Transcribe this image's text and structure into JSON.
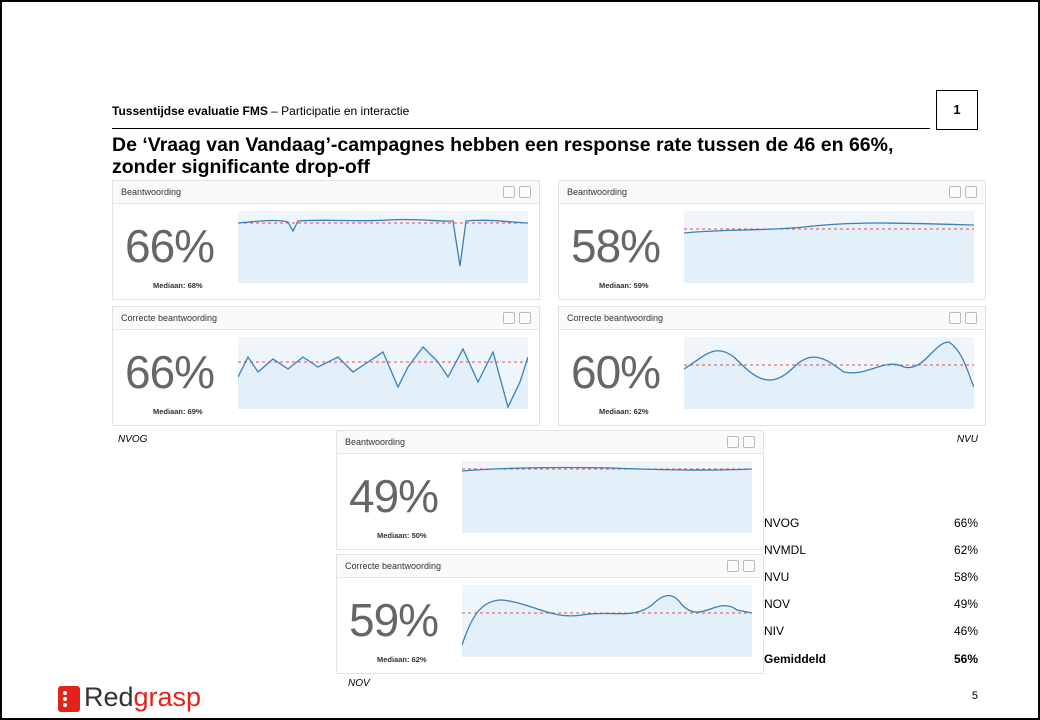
{
  "header": {
    "title_bold": "Tussentijdse evaluatie FMS",
    "title_rest": " – Participatie en interactie",
    "badge": "1"
  },
  "title": "De ‘Vraag van Vandaag’-campagnes hebben een response rate tussen de 46 en 66%, zonder significante drop-off",
  "panels": [
    {
      "label": "Beantwoording",
      "value": "66%",
      "median": "Mediaan: 68%"
    },
    {
      "label": "Beantwoording",
      "value": "58%",
      "median": "Mediaan: 59%"
    },
    {
      "label": "Correcte beantwoording",
      "value": "66%",
      "median": "Mediaan: 69%"
    },
    {
      "label": "Correcte beantwoording",
      "value": "60%",
      "median": "Mediaan: 62%"
    },
    {
      "label": "Beantwoording",
      "value": "49%",
      "median": "Mediaan: 50%"
    },
    {
      "label": "Correcte beantwoording",
      "value": "59%",
      "median": "Mediaan: 62%"
    }
  ],
  "groups": [
    "NVOG",
    "NVU",
    "NOV"
  ],
  "table": {
    "rows": [
      [
        "NVOG",
        "66%"
      ],
      [
        "NVMDL",
        "62%"
      ],
      [
        "NVU",
        "58%"
      ],
      [
        "NOV",
        "49%"
      ],
      [
        "NIV",
        "46%"
      ],
      [
        "Gemiddeld",
        "56%"
      ]
    ]
  },
  "logo": [
    "Red",
    "grasp"
  ],
  "page_number": "5"
}
